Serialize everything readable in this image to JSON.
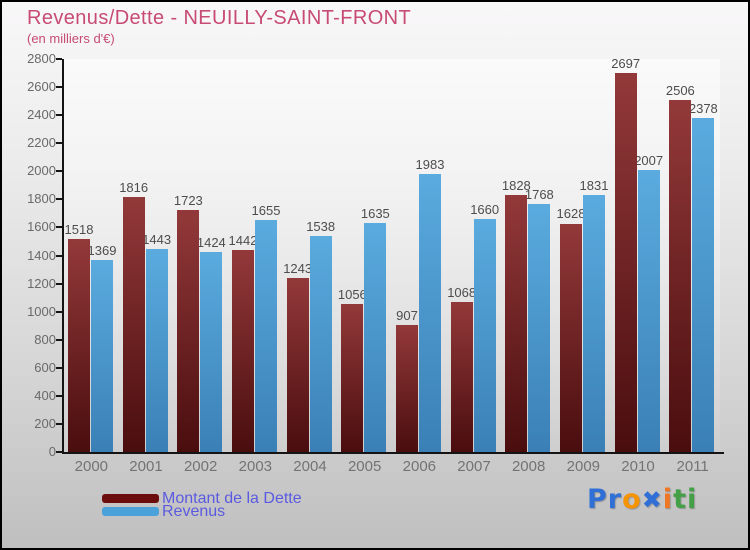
{
  "header": {
    "title": "Revenus/Dette - NEUILLY-SAINT-FRONT",
    "subtitle": "(en milliers d'€)"
  },
  "chart_data": {
    "type": "bar",
    "categories": [
      "2000",
      "2001",
      "2002",
      "2003",
      "2004",
      "2005",
      "2006",
      "2007",
      "2008",
      "2009",
      "2010",
      "2011"
    ],
    "series": [
      {
        "key": "dette",
        "name": "Montant de la Dette",
        "values": [
          1518,
          1816,
          1723,
          1442,
          1243,
          1056,
          907,
          1068,
          1828,
          1628,
          2697,
          2506
        ],
        "color_top": "#93393a",
        "color_bottom": "#4a0d0e",
        "legend_color": "#6b0d0d"
      },
      {
        "key": "revenus",
        "name": "Revenus",
        "values": [
          1369,
          1443,
          1424,
          1655,
          1538,
          1635,
          1983,
          1660,
          1768,
          1831,
          2007,
          2378
        ],
        "color_top": "#5aabdf",
        "color_bottom": "#3a80b6",
        "legend_color": "#4ba2da"
      }
    ],
    "title": "Revenus/Dette - NEUILLY-SAINT-FRONT",
    "xlabel": "",
    "ylabel": "(en milliers d'€)",
    "ylim": [
      0,
      2800
    ],
    "ytick_step": 200,
    "grid": false,
    "legend_position": "bottom-left",
    "value_labels": true
  },
  "colors": {
    "title": "#c74b73",
    "legend_text": "#5a5ae0",
    "axis_line": "#141414"
  },
  "logo": {
    "name": "Proxiti",
    "letters": [
      {
        "ch": "P",
        "color": "#2f6fd6"
      },
      {
        "ch": "r",
        "color": "#2f6fd6"
      },
      {
        "ch": "o",
        "color": "#f59300"
      },
      {
        "ch": "✖",
        "color": "#2f6fd6",
        "x": true
      },
      {
        "ch": "i",
        "color": "#ef7622"
      },
      {
        "ch": "t",
        "color": "#43a047"
      },
      {
        "ch": "i",
        "color": "#43a047"
      }
    ]
  }
}
